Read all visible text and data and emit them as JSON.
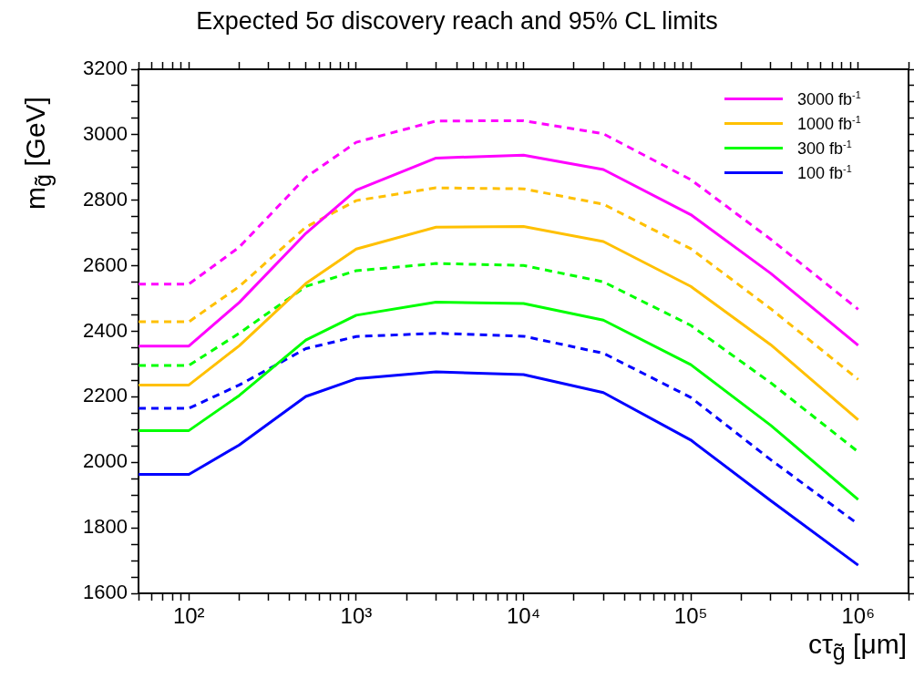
{
  "chart_data": {
    "type": "line",
    "title": "Expected 5σ discovery reach and 95% CL limits",
    "xlabel": "cτ$_{g̃}$ [μm]",
    "ylabel": "m$_{g̃}$ [GeV]",
    "log": "x",
    "legend": "top right",
    "x": [
      50,
      100,
      200,
      500,
      1000,
      3000,
      10000,
      30000,
      100000,
      300000,
      1000000
    ],
    "xlim": [
      50,
      2000000
    ],
    "xticks": [
      {
        "value": 50,
        "label": null
      },
      {
        "value": 60,
        "label": null
      },
      {
        "value": 70,
        "label": null
      },
      {
        "value": 80,
        "label": null
      },
      {
        "value": 90,
        "label": null
      },
      {
        "value": 100,
        "label": "10²"
      },
      {
        "value": 200,
        "label": null
      },
      {
        "value": 300,
        "label": null
      },
      {
        "value": 400,
        "label": null
      },
      {
        "value": 500,
        "label": null
      },
      {
        "value": 600,
        "label": null
      },
      {
        "value": 700,
        "label": null
      },
      {
        "value": 800,
        "label": null
      },
      {
        "value": 900,
        "label": null
      },
      {
        "value": 1000,
        "label": "10³"
      },
      {
        "value": 2000,
        "label": null
      },
      {
        "value": 3000,
        "label": null
      },
      {
        "value": 4000,
        "label": null
      },
      {
        "value": 5000,
        "label": null
      },
      {
        "value": 6000,
        "label": null
      },
      {
        "value": 7000,
        "label": null
      },
      {
        "value": 8000,
        "label": null
      },
      {
        "value": 9000,
        "label": null
      },
      {
        "value": 10000,
        "label": "10⁴"
      },
      {
        "value": 20000,
        "label": null
      },
      {
        "value": 30000,
        "label": null
      },
      {
        "value": 40000,
        "label": null
      },
      {
        "value": 50000,
        "label": null
      },
      {
        "value": 60000,
        "label": null
      },
      {
        "value": 70000,
        "label": null
      },
      {
        "value": 80000,
        "label": null
      },
      {
        "value": 90000,
        "label": null
      },
      {
        "value": 100000,
        "label": "10⁵"
      },
      {
        "value": 200000,
        "label": null
      },
      {
        "value": 300000,
        "label": null
      },
      {
        "value": 400000,
        "label": null
      },
      {
        "value": 500000,
        "label": null
      },
      {
        "value": 600000,
        "label": null
      },
      {
        "value": 700000,
        "label": null
      },
      {
        "value": 800000,
        "label": null
      },
      {
        "value": 900000,
        "label": null
      },
      {
        "value": 1000000,
        "label": "10⁶"
      },
      {
        "value": 2000000,
        "label": null
      }
    ],
    "ylim": [
      1600,
      3200
    ],
    "yticks": [
      1600,
      {
        "value": 1650,
        "label": null
      },
      {
        "value": 1700,
        "label": null
      },
      {
        "value": 1750,
        "label": null
      },
      1800,
      {
        "value": 1850,
        "label": null
      },
      {
        "value": 1900,
        "label": null
      },
      {
        "value": 1950,
        "label": null
      },
      2000,
      {
        "value": 2050,
        "label": null
      },
      {
        "value": 2100,
        "label": null
      },
      {
        "value": 2150,
        "label": null
      },
      2200,
      {
        "value": 2250,
        "label": null
      },
      {
        "value": 2300,
        "label": null
      },
      {
        "value": 2350,
        "label": null
      },
      2400,
      {
        "value": 2450,
        "label": null
      },
      {
        "value": 2500,
        "label": null
      },
      {
        "value": 2550,
        "label": null
      },
      2600,
      {
        "value": 2650,
        "label": null
      },
      {
        "value": 2700,
        "label": null
      },
      {
        "value": 2750,
        "label": null
      },
      2800,
      {
        "value": 2850,
        "label": null
      },
      {
        "value": 2900,
        "label": null
      },
      {
        "value": 2950,
        "label": null
      },
      3000,
      {
        "value": 3050,
        "label": null
      },
      {
        "value": 3100,
        "label": null
      },
      {
        "value": 3150,
        "label": null
      },
      3200
    ],
    "series": [
      {
        "name": "3000 fb$^{-1}$",
        "color": "#ff00ff",
        "line_style": "solid",
        "values": [
          2355,
          2355,
          2488,
          2699,
          2831,
          2929,
          2938,
          2894,
          2756,
          2577,
          2357
        ]
      },
      {
        "name": "1000 fb$^{-1}$",
        "color": "#ffc000",
        "line_style": "solid",
        "values": [
          2236,
          2236,
          2356,
          2546,
          2651,
          2718,
          2720,
          2674,
          2537,
          2359,
          2130
        ]
      },
      {
        "name": "300 fb$^{-1}$",
        "color": "#00ff00",
        "line_style": "solid",
        "values": [
          2097,
          2097,
          2204,
          2373,
          2449,
          2489,
          2485,
          2434,
          2298,
          2113,
          1886
        ]
      },
      {
        "name": "100 fb$^{-1}$",
        "color": "#0000ff",
        "line_style": "solid",
        "values": [
          1963,
          1963,
          2053,
          2201,
          2255,
          2276,
          2268,
          2213,
          2068,
          1883,
          1686
        ]
      },
      {
        "color": "#ff00ff",
        "line_style": "dashed",
        "values": [
          2544,
          2544,
          2657,
          2870,
          2977,
          3042,
          3043,
          3003,
          2863,
          2681,
          2467
        ]
      },
      {
        "color": "#ffc000",
        "line_style": "dashed",
        "values": [
          2429,
          2429,
          2537,
          2718,
          2799,
          2838,
          2835,
          2788,
          2652,
          2469,
          2253
        ]
      },
      {
        "color": "#00ff00",
        "line_style": "dashed",
        "values": [
          2296,
          2296,
          2394,
          2537,
          2585,
          2607,
          2601,
          2551,
          2418,
          2243,
          2032
        ]
      },
      {
        "color": "#0000ff",
        "line_style": "dashed",
        "values": [
          2165,
          2165,
          2236,
          2347,
          2384,
          2394,
          2385,
          2333,
          2198,
          2008,
          1811
        ]
      }
    ]
  }
}
